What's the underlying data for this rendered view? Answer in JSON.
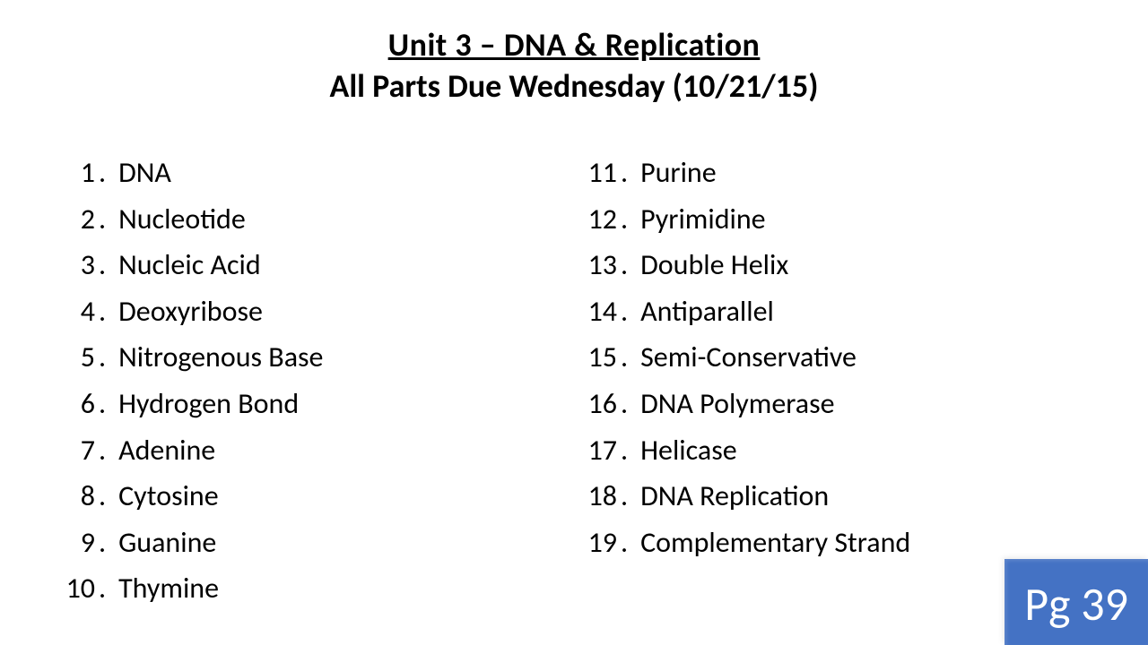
{
  "header": {
    "title": "Unit 3 – DNA & Replication",
    "subtitle": "All Parts Due Wednesday (10/21/15)"
  },
  "columns": {
    "left": [
      {
        "n": "1",
        "text": "DNA"
      },
      {
        "n": "2",
        "text": "Nucleotide"
      },
      {
        "n": "3",
        "text": "Nucleic Acid"
      },
      {
        "n": "4",
        "text": "Deoxyribose"
      },
      {
        "n": "5",
        "text": "Nitrogenous Base"
      },
      {
        "n": "6",
        "text": "Hydrogen Bond"
      },
      {
        "n": "7",
        "text": "Adenine"
      },
      {
        "n": "8",
        "text": "Cytosine"
      },
      {
        "n": "9",
        "text": "Guanine"
      },
      {
        "n": "10",
        "text": "Thymine"
      }
    ],
    "right": [
      {
        "n": "11",
        "text": "Purine"
      },
      {
        "n": "12",
        "text": "Pyrimidine"
      },
      {
        "n": "13",
        "text": "Double Helix"
      },
      {
        "n": "14",
        "text": "Antiparallel"
      },
      {
        "n": "15",
        "text": "Semi-Conservative"
      },
      {
        "n": "16",
        "text": "DNA Polymerase"
      },
      {
        "n": "17",
        "text": "Helicase"
      },
      {
        "n": "18",
        "text": "DNA Replication"
      },
      {
        "n": "19",
        "text": "Complementary Strand"
      }
    ]
  },
  "page_badge": "Pg 39",
  "style": {
    "background_color": "#ffffff",
    "text_color": "#000000",
    "badge_bg": "#4472c4",
    "badge_text_color": "#ffffff",
    "title_fontsize": 36,
    "body_fontsize": 32,
    "badge_fontsize": 52,
    "font_family": "Calibri"
  }
}
